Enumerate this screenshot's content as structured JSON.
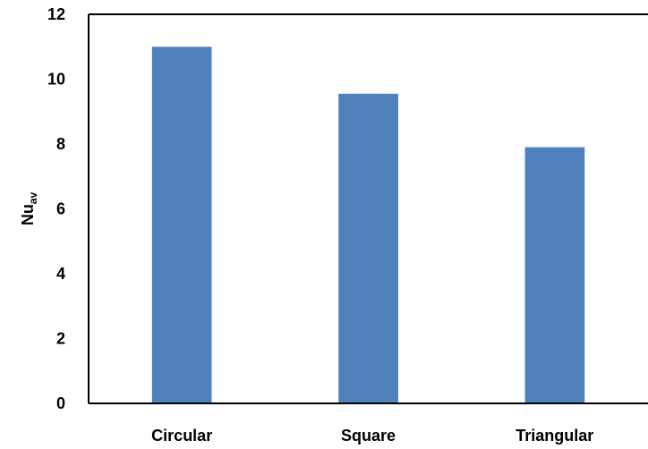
{
  "chart_data": {
    "type": "bar",
    "categories": [
      "Circular",
      "Square",
      "Triangular"
    ],
    "values": [
      11.0,
      9.55,
      7.9
    ],
    "title": "",
    "xlabel": "",
    "ylabel": "Nu",
    "ylabel_subscript": "av",
    "ylim": [
      0,
      12
    ],
    "yticks": [
      "0",
      "2",
      "4",
      "6",
      "8",
      "10",
      "12"
    ],
    "grid": false,
    "bar_color": "#4f81bd",
    "axis_color": "#000000"
  }
}
